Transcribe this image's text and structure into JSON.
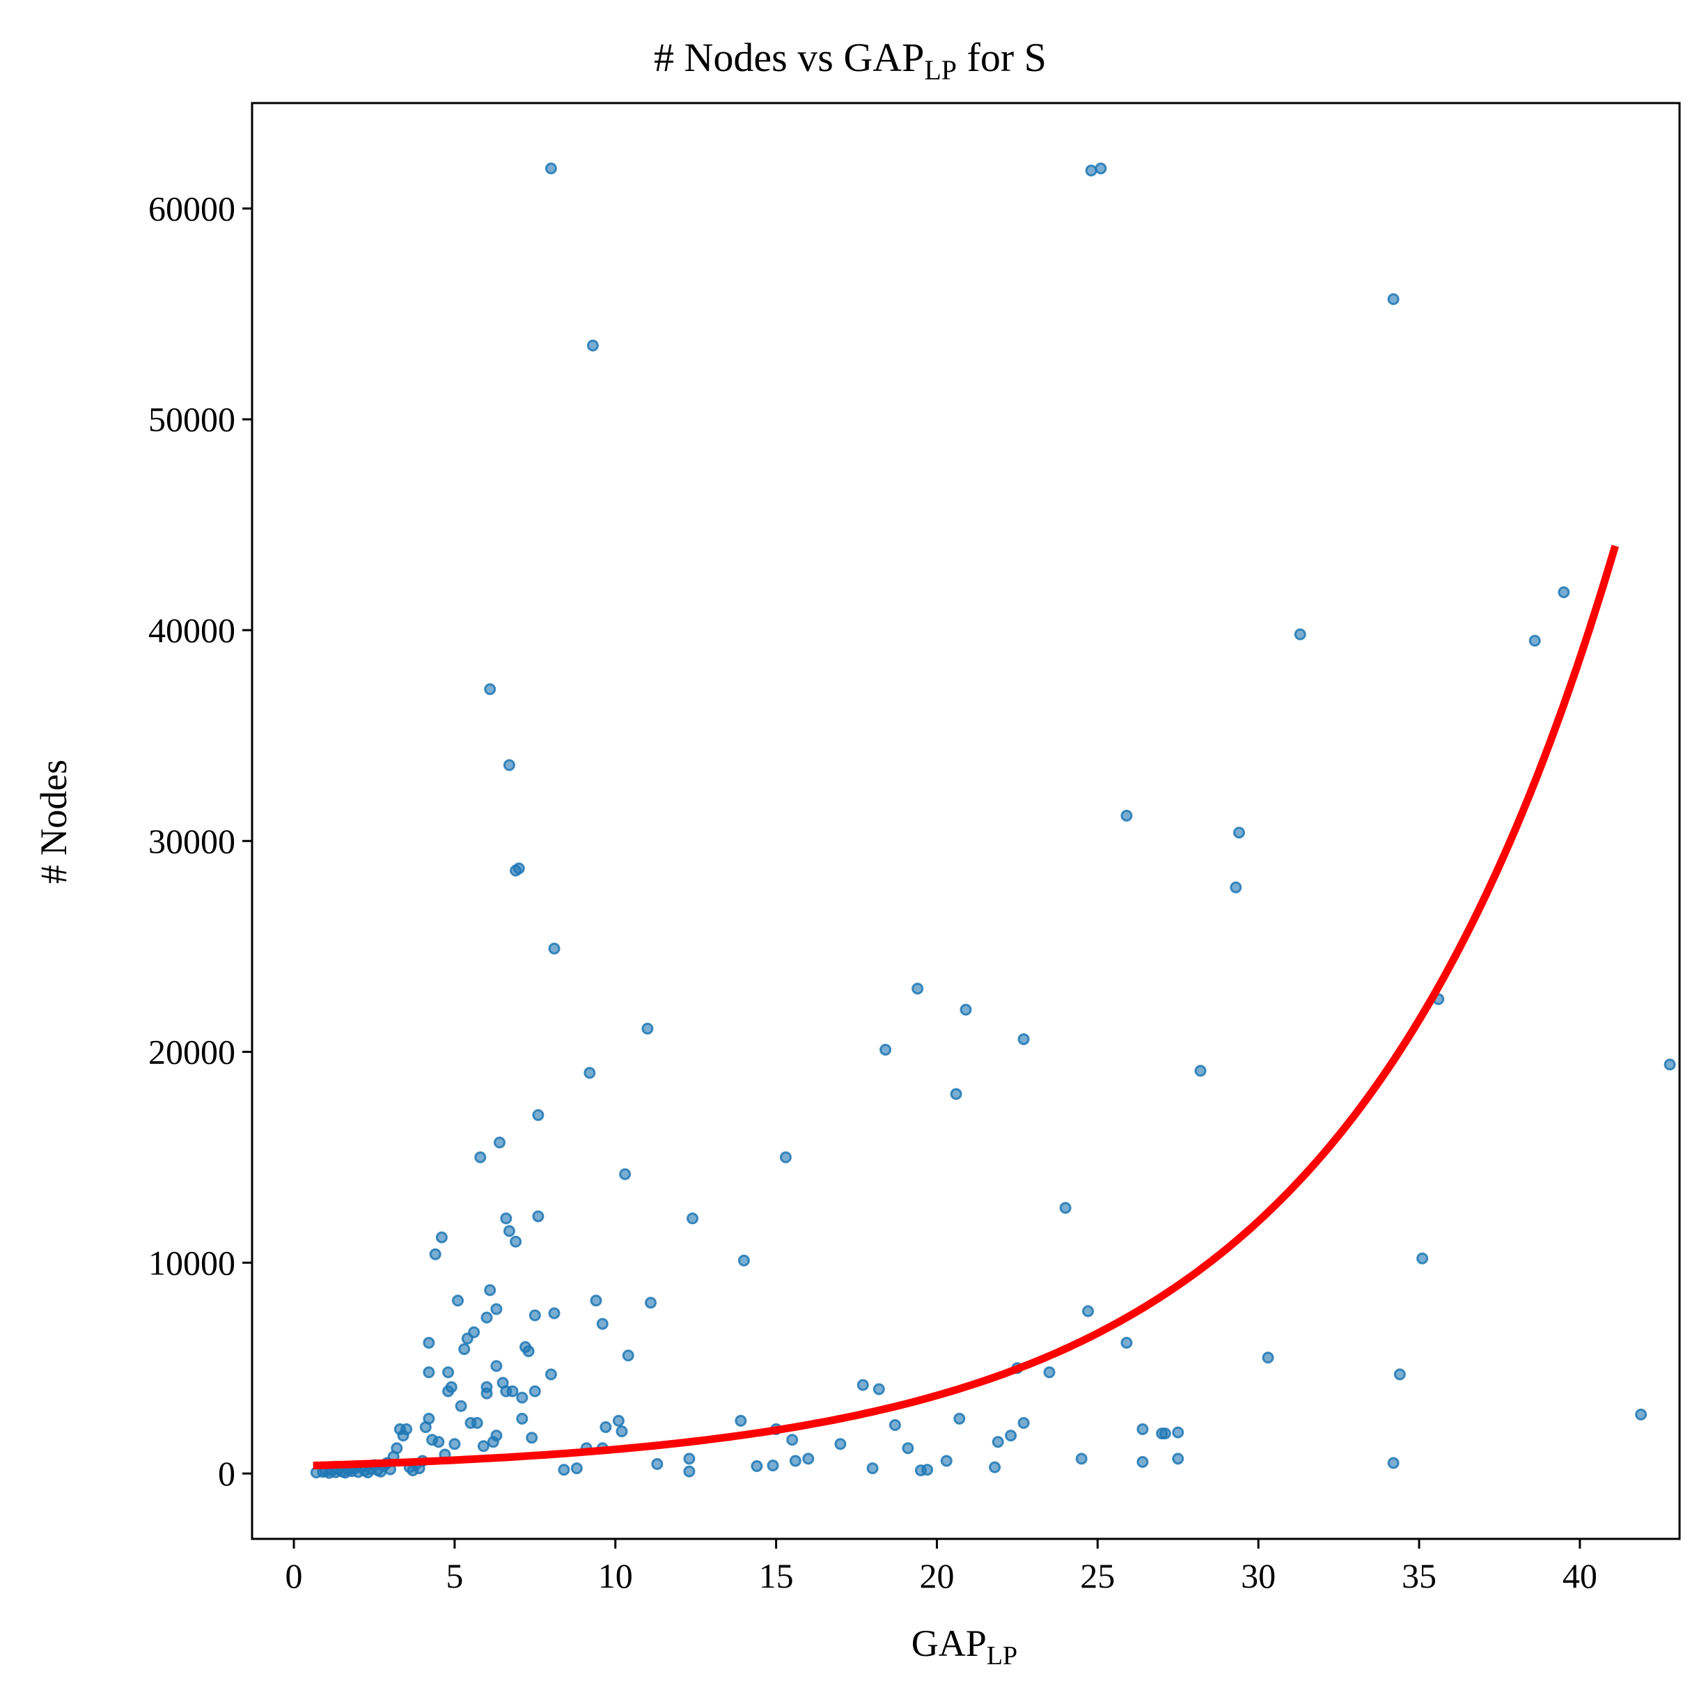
{
  "chart_data": {
    "type": "scatter",
    "title": {
      "main": "# Nodes vs GAP",
      "sub": "LP",
      "tail": " for S"
    },
    "xlabel": {
      "main": "GAP",
      "sub": "LP"
    },
    "ylabel": "# Nodes",
    "xlim": [
      -1.3,
      43.1
    ],
    "ylim": [
      -3100,
      65000
    ],
    "xticks": [
      0,
      5,
      10,
      15,
      20,
      25,
      30,
      35,
      40
    ],
    "yticks": [
      0,
      10000,
      20000,
      30000,
      40000,
      50000,
      60000
    ],
    "grid": false,
    "legend": "none",
    "colors": {
      "points": "#1f77b4",
      "fit": "#ff0000"
    },
    "fit": {
      "form": "exponential",
      "x_start": 0.6,
      "x_end": 41.1,
      "y_start": 380,
      "y_end": 44000
    },
    "points": [
      [
        0.7,
        50
      ],
      [
        0.9,
        80
      ],
      [
        1.0,
        120
      ],
      [
        1.1,
        30
      ],
      [
        1.2,
        150
      ],
      [
        1.3,
        60
      ],
      [
        1.4,
        200
      ],
      [
        1.5,
        90
      ],
      [
        1.6,
        40
      ],
      [
        1.7,
        180
      ],
      [
        1.8,
        110
      ],
      [
        1.9,
        250
      ],
      [
        2.0,
        70
      ],
      [
        2.1,
        300
      ],
      [
        2.2,
        140
      ],
      [
        2.3,
        50
      ],
      [
        2.4,
        220
      ],
      [
        2.5,
        400
      ],
      [
        2.6,
        160
      ],
      [
        2.7,
        90
      ],
      [
        2.8,
        350
      ],
      [
        2.9,
        500
      ],
      [
        3.0,
        200
      ],
      [
        3.1,
        800
      ],
      [
        3.2,
        1200
      ],
      [
        3.3,
        2100
      ],
      [
        3.4,
        1800
      ],
      [
        3.5,
        2100
      ],
      [
        3.6,
        300
      ],
      [
        3.7,
        150
      ],
      [
        3.8,
        450
      ],
      [
        3.9,
        250
      ],
      [
        4.0,
        600
      ],
      [
        4.1,
        2200
      ],
      [
        4.2,
        2600
      ],
      [
        4.2,
        4800
      ],
      [
        4.2,
        6200
      ],
      [
        4.3,
        1600
      ],
      [
        4.4,
        10400
      ],
      [
        4.5,
        1500
      ],
      [
        4.6,
        11200
      ],
      [
        4.7,
        900
      ],
      [
        4.8,
        3900
      ],
      [
        4.8,
        4800
      ],
      [
        4.9,
        4100
      ],
      [
        5.0,
        1400
      ],
      [
        5.1,
        8200
      ],
      [
        5.2,
        3200
      ],
      [
        5.3,
        5900
      ],
      [
        5.4,
        6400
      ],
      [
        5.5,
        2400
      ],
      [
        5.6,
        6700
      ],
      [
        5.7,
        2400
      ],
      [
        5.8,
        15000
      ],
      [
        5.9,
        1300
      ],
      [
        6.0,
        3800
      ],
      [
        6.0,
        4100
      ],
      [
        6.0,
        7400
      ],
      [
        6.1,
        37200
      ],
      [
        6.1,
        8700
      ],
      [
        6.2,
        1500
      ],
      [
        6.3,
        1800
      ],
      [
        6.3,
        7800
      ],
      [
        6.3,
        5100
      ],
      [
        6.4,
        15700
      ],
      [
        6.5,
        4300
      ],
      [
        6.6,
        12100
      ],
      [
        6.6,
        3900
      ],
      [
        6.7,
        11500
      ],
      [
        6.7,
        33600
      ],
      [
        6.8,
        3900
      ],
      [
        6.9,
        11000
      ],
      [
        6.9,
        28600
      ],
      [
        7.0,
        28700
      ],
      [
        7.1,
        3600
      ],
      [
        7.1,
        2600
      ],
      [
        7.2,
        6000
      ],
      [
        7.3,
        5800
      ],
      [
        7.4,
        1700
      ],
      [
        7.5,
        3900
      ],
      [
        7.5,
        7500
      ],
      [
        7.6,
        17000
      ],
      [
        7.6,
        12200
      ],
      [
        8.0,
        61900
      ],
      [
        8.0,
        4700
      ],
      [
        8.1,
        7600
      ],
      [
        8.1,
        24900
      ],
      [
        8.4,
        180
      ],
      [
        8.8,
        250
      ],
      [
        9.1,
        1200
      ],
      [
        9.2,
        19000
      ],
      [
        9.3,
        53500
      ],
      [
        9.4,
        8200
      ],
      [
        9.6,
        1200
      ],
      [
        9.6,
        7100
      ],
      [
        9.7,
        2200
      ],
      [
        10.1,
        2500
      ],
      [
        10.2,
        2000
      ],
      [
        10.3,
        14200
      ],
      [
        10.4,
        5600
      ],
      [
        11.0,
        21100
      ],
      [
        11.1,
        8100
      ],
      [
        11.3,
        450
      ],
      [
        12.3,
        700
      ],
      [
        12.3,
        100
      ],
      [
        12.4,
        12100
      ],
      [
        13.9,
        2500
      ],
      [
        14.0,
        10100
      ],
      [
        14.4,
        350
      ],
      [
        14.9,
        380
      ],
      [
        15.0,
        2100
      ],
      [
        15.3,
        15000
      ],
      [
        15.5,
        1600
      ],
      [
        15.6,
        600
      ],
      [
        16.0,
        700
      ],
      [
        17.0,
        1400
      ],
      [
        17.7,
        4200
      ],
      [
        18.0,
        250
      ],
      [
        18.2,
        4000
      ],
      [
        18.4,
        20100
      ],
      [
        18.7,
        2300
      ],
      [
        19.1,
        1200
      ],
      [
        19.4,
        23000
      ],
      [
        19.5,
        150
      ],
      [
        19.7,
        180
      ],
      [
        20.3,
        600
      ],
      [
        20.6,
        18000
      ],
      [
        20.7,
        2600
      ],
      [
        20.9,
        22000
      ],
      [
        21.8,
        300
      ],
      [
        21.9,
        1500
      ],
      [
        22.3,
        1800
      ],
      [
        22.5,
        5000
      ],
      [
        22.7,
        20600
      ],
      [
        22.7,
        2400
      ],
      [
        23.5,
        4800
      ],
      [
        24.0,
        12600
      ],
      [
        24.5,
        700
      ],
      [
        24.7,
        7700
      ],
      [
        24.8,
        61800
      ],
      [
        25.1,
        61900
      ],
      [
        25.9,
        6200
      ],
      [
        25.9,
        31200
      ],
      [
        26.4,
        2100
      ],
      [
        26.4,
        550
      ],
      [
        27.0,
        1900
      ],
      [
        27.1,
        1900
      ],
      [
        27.5,
        1950
      ],
      [
        27.5,
        700
      ],
      [
        28.2,
        19100
      ],
      [
        29.3,
        27800
      ],
      [
        29.4,
        30400
      ],
      [
        30.3,
        5500
      ],
      [
        31.3,
        39800
      ],
      [
        34.2,
        55700
      ],
      [
        34.2,
        500
      ],
      [
        34.4,
        4700
      ],
      [
        35.1,
        10200
      ],
      [
        35.6,
        22500
      ],
      [
        38.6,
        39500
      ],
      [
        39.5,
        41800
      ],
      [
        41.9,
        2800
      ],
      [
        42.8,
        19400
      ]
    ]
  }
}
